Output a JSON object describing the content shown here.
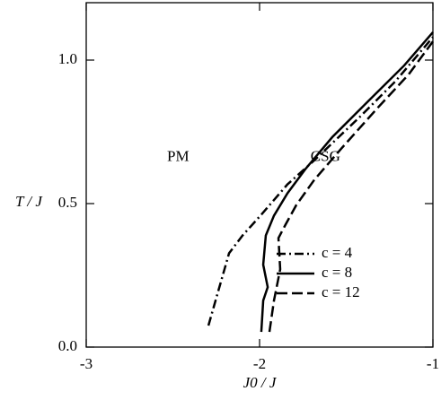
{
  "chart_data": {
    "type": "line",
    "xlabel": "J0 / J",
    "ylabel": "T / J",
    "annotations": [
      {
        "text": "PM",
        "x": -2.47,
        "y": 0.66
      },
      {
        "text": "CSG",
        "x": -1.62,
        "y": 0.66
      }
    ],
    "xlim": [
      -3,
      -1
    ],
    "ylim": [
      0,
      1.2
    ],
    "xticks": [
      -3,
      -2,
      -1
    ],
    "yticks": [
      {
        "value": 0,
        "label": "0.0"
      },
      {
        "value": 0.5,
        "label": "0.5"
      },
      {
        "value": 1,
        "label": "1.0"
      }
    ],
    "legend": "lower right",
    "series": [
      {
        "name": "c = 4",
        "color": "#000000",
        "linestyle": "dashdot",
        "x": [
          -2.295,
          -2.254,
          -2.176,
          -2.098,
          -1.995,
          -1.839,
          -1.684,
          -1.425,
          -1.218,
          -1.0
        ],
        "values": [
          0.075,
          0.162,
          0.327,
          0.389,
          0.458,
          0.567,
          0.651,
          0.8,
          0.925,
          1.08
        ]
      },
      {
        "name": "c = 8",
        "color": "#000000",
        "linestyle": "solid",
        "x": [
          -1.99,
          -1.979,
          -1.953,
          -1.979,
          -1.964,
          -1.917,
          -1.839,
          -1.736,
          -1.58,
          -1.373,
          -1.166,
          -1.0
        ],
        "values": [
          0.053,
          0.162,
          0.209,
          0.287,
          0.389,
          0.458,
          0.536,
          0.62,
          0.732,
          0.857,
          0.981,
          1.097
        ]
      },
      {
        "name": "c = 12",
        "color": "#000000",
        "linestyle": "dashed",
        "x": [
          -1.943,
          -1.917,
          -1.881,
          -1.891,
          -1.85,
          -1.788,
          -1.684,
          -1.528,
          -1.321,
          -1.14,
          -1.0
        ],
        "values": [
          0.053,
          0.162,
          0.271,
          0.38,
          0.427,
          0.495,
          0.583,
          0.692,
          0.832,
          0.95,
          1.065
        ]
      }
    ]
  }
}
